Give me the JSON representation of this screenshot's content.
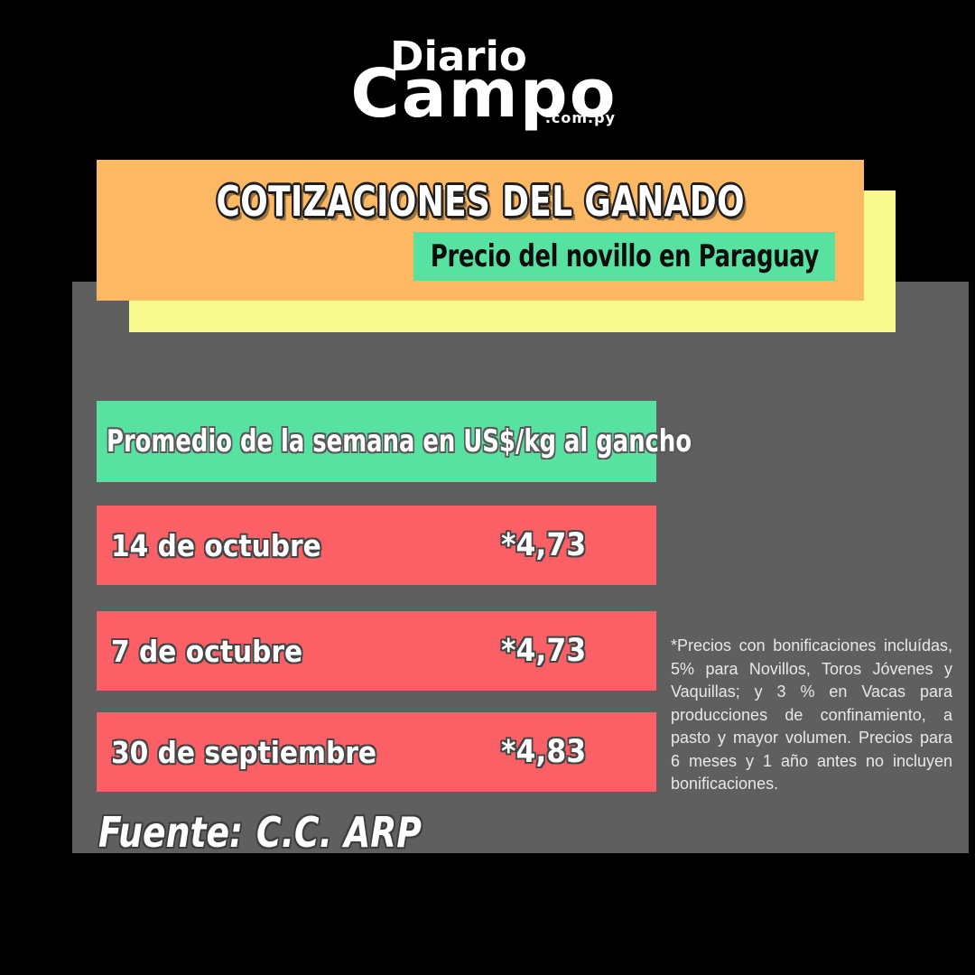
{
  "logo": {
    "top": "Diario",
    "main": "Campo",
    "domain": ".com.py"
  },
  "banner": {
    "title": "COTIZACIONES DEL GANADO",
    "subtitle": "Precio del novillo en Paraguay"
  },
  "table": {
    "header": "Promedio de la semana en US$/kg al gancho",
    "rows": [
      {
        "date": "14 de octubre",
        "price": "*4,73"
      },
      {
        "date": "7 de octubre",
        "price": "*4,73"
      },
      {
        "date": "30 de septiembre",
        "price": "*4,83"
      }
    ]
  },
  "note": "*Precios con bonificaciones incluídas, 5% para Novillos, Toros Jóvenes y Vaquillas; y 3 % en Vacas para producciones de confinamiento, a pasto y mayor volumen. Precios para 6 meses y 1 año antes no incluyen bonificaciones.",
  "source": {
    "label": "Fuente:",
    "value": "C.C. ARP"
  },
  "colors": {
    "background": "#000000",
    "panel_gray": "#5F5F5F",
    "banner_orange": "#FDB863",
    "banner_yellow": "#F8FA90",
    "accent_green": "#57E2A2",
    "row_red": "#FC6067",
    "text_white": "#FFFFFF"
  },
  "chart_data": {
    "type": "table",
    "title": "COTIZACIONES DEL GANADO",
    "subtitle": "Precio del novillo en Paraguay",
    "metric": "Promedio de la semana en US$/kg al gancho",
    "categories": [
      "14 de octubre",
      "7 de octubre",
      "30 de septiembre"
    ],
    "values": [
      4.73,
      4.73,
      4.83
    ],
    "value_labels": [
      "*4,73",
      "*4,73",
      "*4,83"
    ],
    "source": "C.C. ARP",
    "footnote": "*Precios con bonificaciones incluídas, 5% para Novillos, Toros Jóvenes y Vaquillas; y 3 % en Vacas para producciones de confinamiento, a pasto y mayor volumen. Precios para 6 meses y 1 año antes no incluyen bonificaciones."
  }
}
